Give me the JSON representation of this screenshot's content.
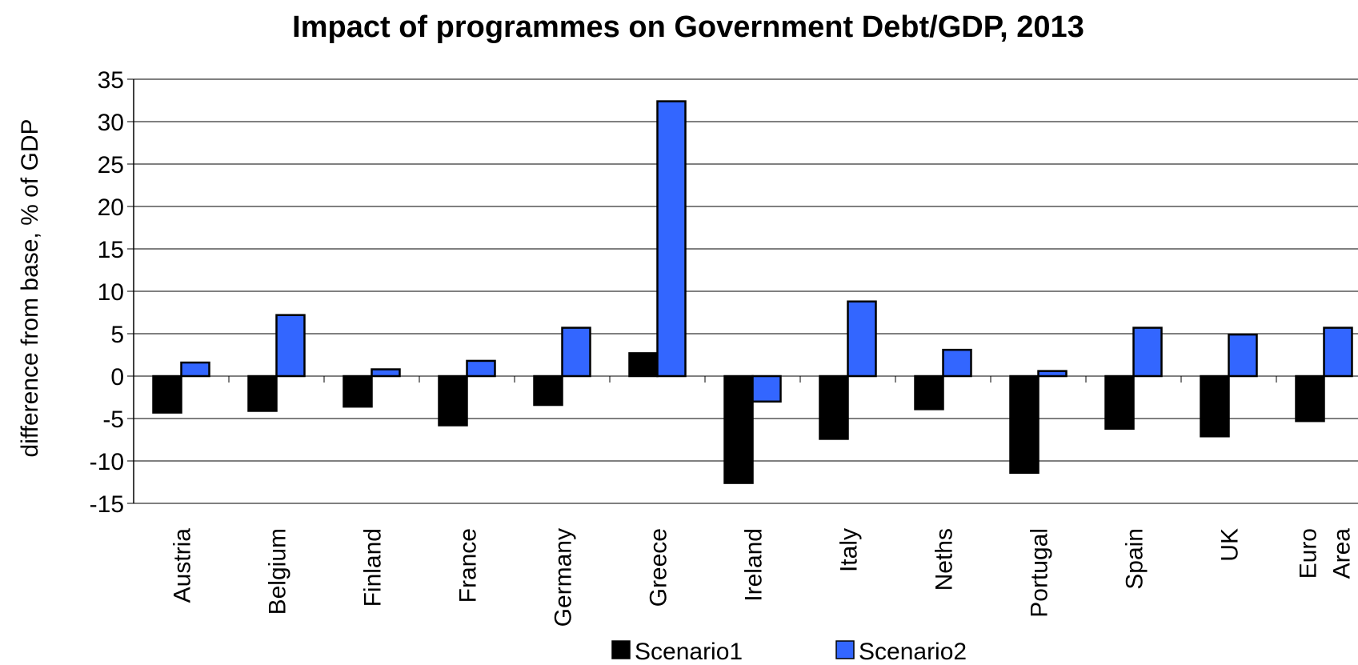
{
  "chart_data": {
    "type": "bar",
    "title": "Impact of programmes on Government Debt/GDP, 2013",
    "xlabel": "",
    "ylabel": "difference from base, % of GDP",
    "ylim": [
      -15,
      35
    ],
    "yticks": [
      35,
      30,
      25,
      20,
      15,
      10,
      5,
      0,
      -5,
      -10,
      -15
    ],
    "categories": [
      "Austria",
      "Belgium",
      "Finland",
      "France",
      "Germany",
      "Greece",
      "Ireland",
      "Italy",
      "Neths",
      "Portugal",
      "Spain",
      "UK",
      "Euro Area"
    ],
    "series": [
      {
        "name": "Scenario1",
        "color": "#000000",
        "values": [
          -4.3,
          -4.1,
          -3.6,
          -5.8,
          -3.4,
          2.7,
          -12.6,
          -7.4,
          -3.9,
          -11.4,
          -6.2,
          -7.1,
          -5.3
        ]
      },
      {
        "name": "Scenario2",
        "color": "#3366FF",
        "values": [
          1.6,
          7.2,
          0.8,
          1.8,
          5.7,
          32.4,
          -3.0,
          8.8,
          3.1,
          0.6,
          5.7,
          4.9,
          5.7
        ]
      }
    ],
    "grid": true,
    "legend": "bottom"
  }
}
